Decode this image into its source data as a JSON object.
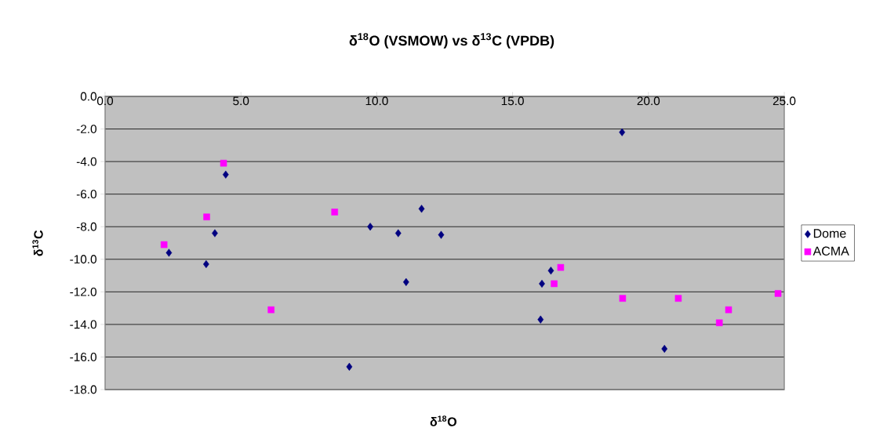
{
  "chart_data": {
    "type": "scatter",
    "title": "δ$^{18}$O (VSMOW) vs δ$^{13}$C (VPDB)",
    "xlabel": "δ$^{18}$O",
    "ylabel": "δ$^{13}$C",
    "xlim": [
      0,
      25
    ],
    "ylim": [
      -18,
      0
    ],
    "xticks": [
      {
        "value": 0,
        "label": "0.0"
      },
      {
        "value": 5,
        "label": "5.0"
      },
      {
        "value": 10,
        "label": "10.0"
      },
      {
        "value": 15,
        "label": "15.0"
      },
      {
        "value": 20,
        "label": "20.0"
      },
      {
        "value": 25,
        "label": "25.0"
      }
    ],
    "yticks": [
      {
        "value": 0,
        "label": "0.0"
      },
      {
        "value": -2,
        "label": "-2.0"
      },
      {
        "value": -4,
        "label": "-4.0"
      },
      {
        "value": -6,
        "label": "-6.0"
      },
      {
        "value": -8,
        "label": "-8.0"
      },
      {
        "value": -10,
        "label": "-10.0"
      },
      {
        "value": -12,
        "label": "-12.0"
      },
      {
        "value": -14,
        "label": "-14.0"
      },
      {
        "value": -16,
        "label": "-16.0"
      },
      {
        "value": -18,
        "label": "-18.0"
      }
    ],
    "grid": "y",
    "legend": "right",
    "series": [
      {
        "name": "Dome",
        "color": "#000080",
        "marker": "diamond",
        "x": [
          2.35,
          3.72,
          4.04,
          4.44,
          9.76,
          8.99,
          19.03,
          11.65,
          10.79,
          12.37,
          11.08,
          16.41,
          16.08,
          16.03,
          20.59
        ],
        "values": [
          -9.6,
          -10.3,
          -8.4,
          -4.8,
          -8.0,
          -16.6,
          -2.2,
          -6.9,
          -8.4,
          -8.5,
          -11.4,
          -10.7,
          -11.5,
          -13.7,
          -15.5
        ]
      },
      {
        "name": "ACMA",
        "color": "#ff00ff",
        "marker": "square",
        "x": [
          2.17,
          3.74,
          4.36,
          8.45,
          6.11,
          16.77,
          16.53,
          19.05,
          21.1,
          22.61,
          22.95,
          24.77
        ],
        "values": [
          -9.1,
          -7.4,
          -4.1,
          -7.1,
          -13.1,
          -10.5,
          -11.5,
          -12.4,
          -12.4,
          -13.9,
          -13.1,
          -12.1
        ]
      }
    ]
  }
}
